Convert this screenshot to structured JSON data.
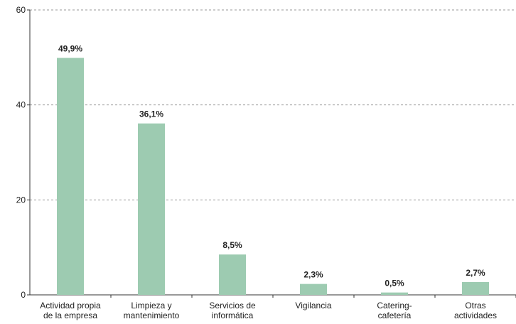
{
  "chart_data": {
    "type": "bar",
    "categories": [
      "Actividad propia\nde la empresa",
      "Limpieza y\nmantenimiento",
      "Servicios de\ninformática",
      "Vigilancia",
      "Catering-\ncafetería",
      "Otras\nactividades"
    ],
    "values": [
      49.9,
      36.1,
      8.5,
      2.3,
      0.5,
      2.7
    ],
    "value_labels": [
      "49,9%",
      "36,1%",
      "8,5%",
      "2,3%",
      "0,5%",
      "2,7%"
    ],
    "color": "#9dcbb1",
    "ylim": [
      0,
      60
    ],
    "yticks": [
      0,
      20,
      40,
      60
    ],
    "grid": true
  }
}
